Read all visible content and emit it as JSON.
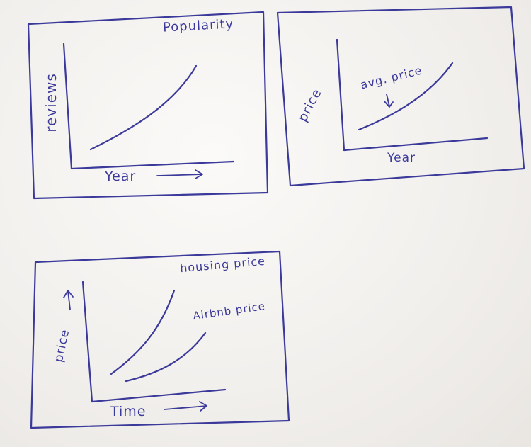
{
  "sketches": [
    {
      "title": "Popularity",
      "y_label": "reviews",
      "x_label": "Year",
      "x_arrow": true
    },
    {
      "y_label": "price",
      "x_label": "Year",
      "annotation": "avg. price"
    },
    {
      "y_label": "price",
      "x_label": "Time",
      "x_arrow": true,
      "y_arrow": true,
      "curves": [
        {
          "label": "housing price"
        },
        {
          "label": "Airbnb price"
        }
      ]
    }
  ],
  "colors": {
    "ink": "#3b3a9a",
    "paper": "#f3f1ee"
  }
}
